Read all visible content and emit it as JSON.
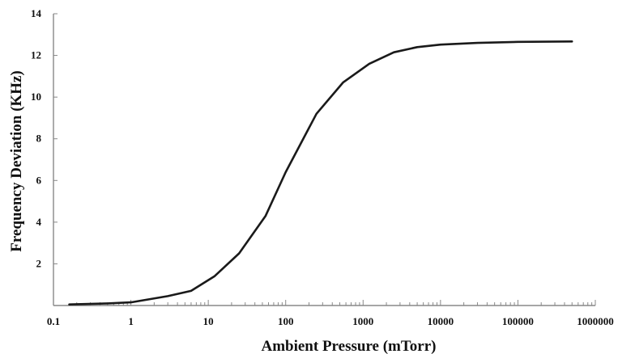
{
  "chart_data": {
    "type": "line",
    "title": "",
    "xlabel": "Ambient Pressure (mTorr)",
    "ylabel": "Frequency Deviation (KHz)",
    "xscale": "log",
    "xlim": [
      0.1,
      1000000
    ],
    "ylim": [
      0,
      14
    ],
    "grid": false,
    "legend": "none",
    "x_ticks": [
      0.1,
      1,
      10,
      100,
      1000,
      10000,
      100000,
      1000000
    ],
    "x_tick_labels": [
      "0.1",
      "1",
      "10",
      "100",
      "1000",
      "10000",
      "100000",
      "1000000"
    ],
    "y_ticks": [
      2,
      4,
      6,
      8,
      10,
      12,
      14
    ],
    "y_tick_labels": [
      "2",
      "4",
      "6",
      "8",
      "10",
      "12",
      "14"
    ],
    "series": [
      {
        "color": "#1a1a1a",
        "x": [
          0.16,
          0.5,
          1,
          3,
          6,
          12,
          25,
          55,
          100,
          250,
          550,
          1200,
          2500,
          5000,
          10000,
          30000,
          100000,
          500000
        ],
        "y": [
          0.05,
          0.1,
          0.15,
          0.45,
          0.7,
          1.4,
          2.5,
          4.3,
          6.4,
          9.2,
          10.7,
          11.6,
          12.15,
          12.4,
          12.52,
          12.6,
          12.65,
          12.67
        ]
      }
    ]
  }
}
